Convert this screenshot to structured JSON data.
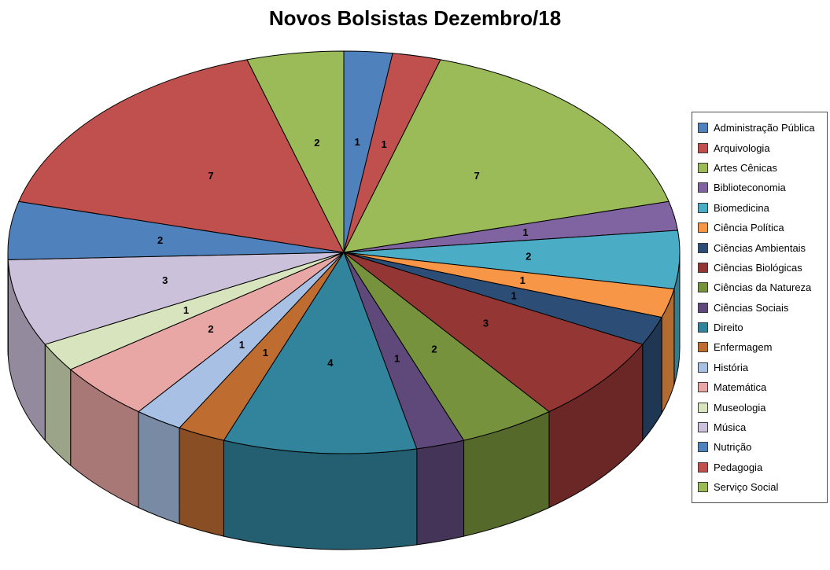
{
  "chart_data": {
    "type": "pie",
    "style": "3d-pie",
    "title": "Novos Bolsistas Dezembro/18",
    "total": 43,
    "legend_position": "right",
    "data_labels": "value",
    "start_angle_deg": 0,
    "direction": "clockwise",
    "background_color": "#FFFFFF",
    "label_color": "#000000",
    "series": [
      {
        "label": "Administração Pública",
        "value": 1,
        "color": "#4F81BD"
      },
      {
        "label": "Arquivologia",
        "value": 1,
        "color": "#C0504D"
      },
      {
        "label": "Artes Cênicas",
        "value": 7,
        "color": "#9BBB59"
      },
      {
        "label": "Biblioteconomia",
        "value": 1,
        "color": "#8064A2"
      },
      {
        "label": "Biomedicina",
        "value": 2,
        "color": "#4BACC6"
      },
      {
        "label": "Ciência Política",
        "value": 1,
        "color": "#F79646"
      },
      {
        "label": "Ciências Ambientais",
        "value": 1,
        "color": "#2C4D75"
      },
      {
        "label": "Ciências Biológicas",
        "value": 3,
        "color": "#943634"
      },
      {
        "label": "Ciências da Natureza",
        "value": 2,
        "color": "#76923C"
      },
      {
        "label": "Ciências Sociais",
        "value": 1,
        "color": "#5F497A"
      },
      {
        "label": "Direito",
        "value": 4,
        "color": "#31849B"
      },
      {
        "label": "Enfermagem",
        "value": 1,
        "color": "#BE6C30"
      },
      {
        "label": "História",
        "value": 1,
        "color": "#A8C0E4"
      },
      {
        "label": "Matemática",
        "value": 2,
        "color": "#E8A6A4"
      },
      {
        "label": "Museologia",
        "value": 1,
        "color": "#D7E4BD"
      },
      {
        "label": "Música",
        "value": 3,
        "color": "#CCC1DA"
      },
      {
        "label": "Nutrição",
        "value": 2,
        "color": "#4F81BD"
      },
      {
        "label": "Pedagogia",
        "value": 7,
        "color": "#C0504D"
      },
      {
        "label": "Serviço Social",
        "value": 2,
        "color": "#9BBB59"
      }
    ]
  }
}
